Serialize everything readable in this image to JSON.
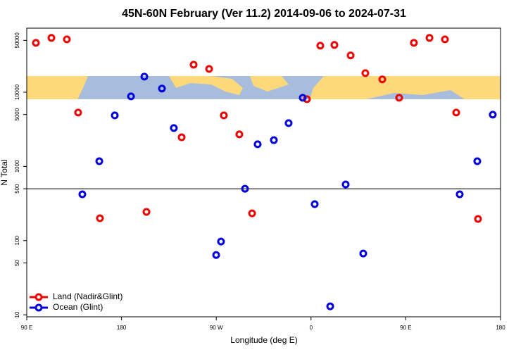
{
  "chart_data": {
    "type": "scatter",
    "title": "45N-60N February (Ver 11.2)   2014-09-06 to 2024-07-31",
    "x_label": "Longitude (deg E)",
    "y_label": "N Total",
    "xlim": [
      90,
      540
    ],
    "ylim": [
      9.4,
      73000
    ],
    "log_y": true,
    "xticks": [
      {
        "value": 90,
        "label": "90 E"
      },
      {
        "value": 180,
        "label": "180"
      },
      {
        "value": 270,
        "label": "90 W"
      },
      {
        "value": 360,
        "label": "0"
      },
      {
        "value": 450,
        "label": "90 E"
      },
      {
        "value": 540,
        "label": "180"
      }
    ],
    "yticks": [
      10,
      50,
      100,
      500,
      1000,
      5000,
      10000,
      50000
    ],
    "reference_line": 500,
    "legend": "bottom-left",
    "series": [
      {
        "name": "Land (Nadir&Glint)",
        "color": "#ee0000",
        "x": [
          98.7,
          113.4,
          128.1,
          138.8,
          159.5,
          203.7,
          237.1,
          248.5,
          263.2,
          277.2,
          291.9,
          304,
          356.1,
          368.8,
          382.2,
          397.6,
          411.6,
          427.7,
          443.7,
          457.7,
          472.5,
          487.2,
          497.9,
          518.6
        ],
        "values": [
          46300,
          54000,
          51600,
          5320,
          200,
          244,
          2470,
          23500,
          20600,
          4870,
          2700,
          233,
          8050,
          42400,
          43400,
          31300,
          18100,
          14900,
          8410,
          46300,
          54000,
          51600,
          5320,
          196
        ]
      },
      {
        "name": "Ocean (Glint)",
        "color": "#0000dd",
        "x": [
          142.8,
          158.9,
          173.6,
          189,
          201.7,
          218.4,
          229.7,
          269.9,
          274.5,
          297.3,
          309.3,
          324.7,
          338.7,
          352.1,
          363.5,
          378.2,
          392.9,
          409.6,
          501.2,
          517.9,
          532.6
        ],
        "values": [
          421,
          1175,
          4870,
          8790,
          16200,
          11200,
          3290,
          64,
          97,
          500,
          1990,
          2260,
          3830,
          8410,
          310,
          13,
          571,
          67,
          421,
          1175,
          4980
        ]
      }
    ]
  }
}
